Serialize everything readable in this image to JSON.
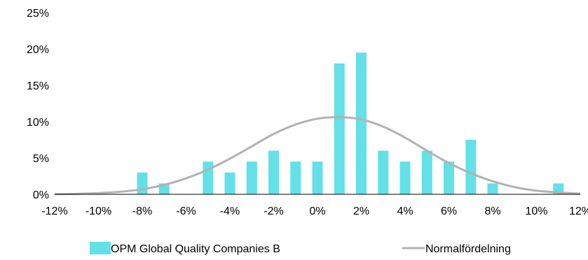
{
  "chart_data": {
    "type": "bar",
    "x_ticks": [
      "-12%",
      "-10%",
      "-8%",
      "-6%",
      "-4%",
      "-2%",
      "0%",
      "2%",
      "4%",
      "6%",
      "8%",
      "10%",
      "12%"
    ],
    "y_ticks": [
      "0%",
      "5%",
      "10%",
      "15%",
      "20%",
      "25%"
    ],
    "ylim": [
      0,
      25
    ],
    "xlim": [
      -12,
      12
    ],
    "grid": false,
    "legend_position": "bottom",
    "series": [
      {
        "name": "OPM Global Quality Companies B",
        "type": "bar",
        "color": "#63e0e8",
        "x": [
          -8,
          -7,
          -5,
          -4,
          -3,
          -2,
          -1,
          0,
          1,
          2,
          3,
          4,
          5,
          6,
          7,
          8,
          11
        ],
        "values": [
          3.0,
          1.5,
          4.5,
          3.0,
          4.5,
          6.0,
          4.5,
          4.5,
          18.0,
          19.5,
          6.0,
          4.5,
          6.0,
          4.5,
          7.5,
          1.5,
          1.5
        ]
      },
      {
        "name": "Normalfördelning",
        "type": "line",
        "color": "#b2b2b2",
        "x": [
          -12,
          -11,
          -10,
          -9,
          -8,
          -7,
          -6,
          -5,
          -4,
          -3,
          -2,
          -1,
          0,
          1,
          2,
          3,
          4,
          5,
          6,
          7,
          8,
          9,
          10,
          11,
          12
        ],
        "values": [
          0.02,
          0.06,
          0.16,
          0.35,
          0.7,
          1.3,
          2.2,
          3.4,
          4.9,
          6.6,
          8.3,
          9.6,
          10.4,
          10.6,
          10.3,
          9.3,
          7.8,
          6.0,
          4.3,
          2.9,
          1.8,
          1.0,
          0.5,
          0.25,
          0.1
        ]
      }
    ]
  }
}
